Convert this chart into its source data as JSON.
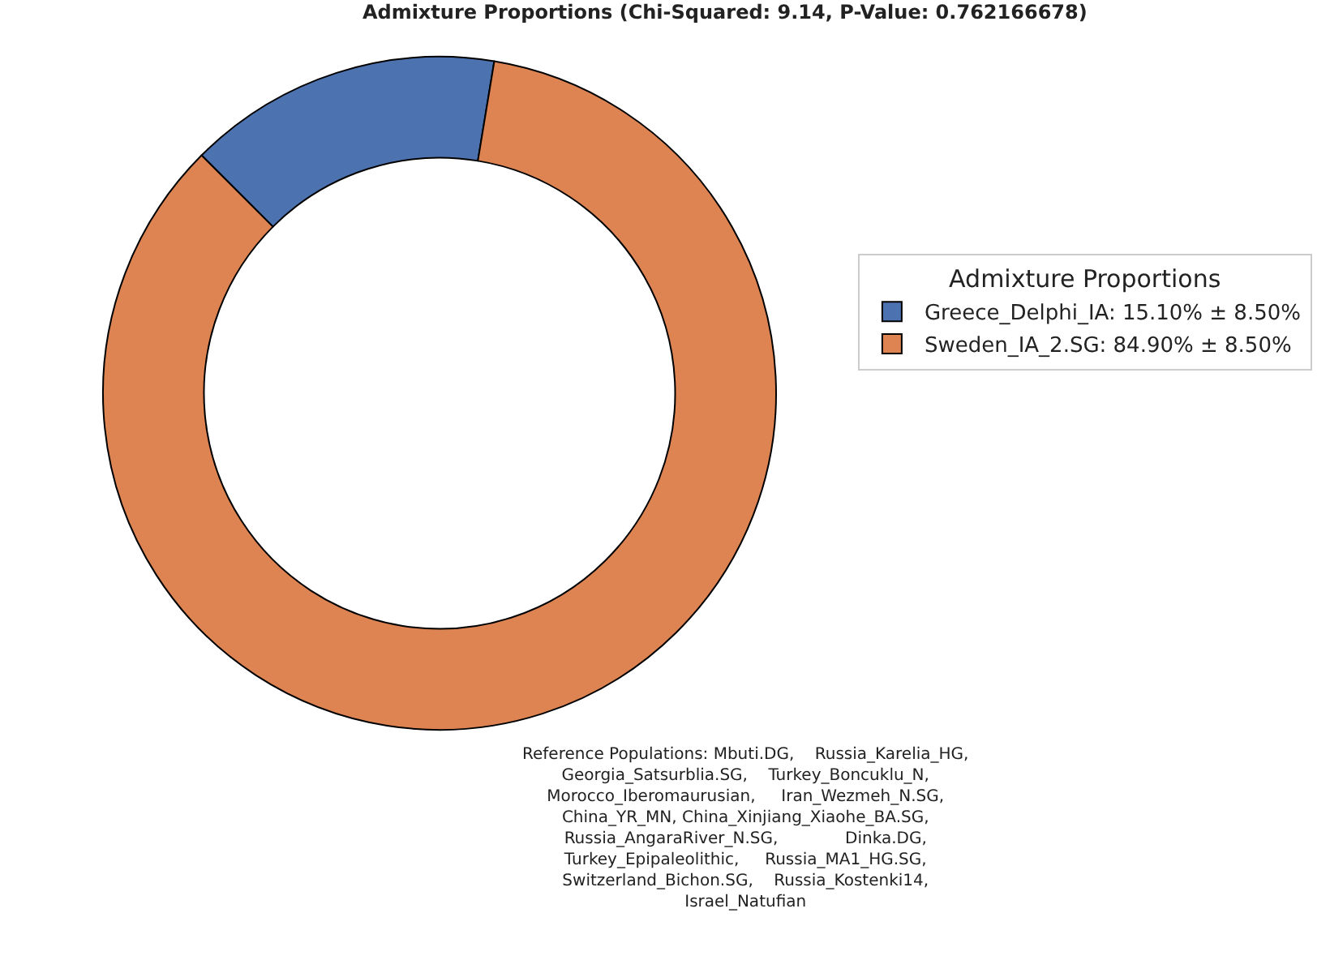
{
  "chart_data": {
    "type": "donut",
    "title": "Admixture Proportions (Chi-Squared: 9.14, P-Value: 0.762166678)",
    "legend_title": "Admixture Proportions",
    "categories": [
      "Greece_Delphi_IA: 15.10% ± 8.50%",
      "Sweden_IA_2.SG: 84.90% ± 8.50%"
    ],
    "values": [
      15.1,
      84.9
    ],
    "colors": [
      "#4c72b0",
      "#dd8452"
    ],
    "legend": "right",
    "annotations": [
      "Reference Populations: Mbuti.DG,    Russia_Karelia_HG,\nGeorgia_Satsurblia.SG,    Turkey_Boncuklu_N,\nMorocco_Iberomaurusian,     Iran_Wezmeh_N.SG,\nChina_YR_MN, China_Xinjiang_Xiaohe_BA.SG,\nRussia_AngaraRiver_N.SG,             Dinka.DG,\nTurkey_Epipaleolithic,     Russia_MA1_HG.SG,\nSwitzerland_Bichon.SG,    Russia_Kostenki14,\nIsrael_Natufian"
    ]
  }
}
